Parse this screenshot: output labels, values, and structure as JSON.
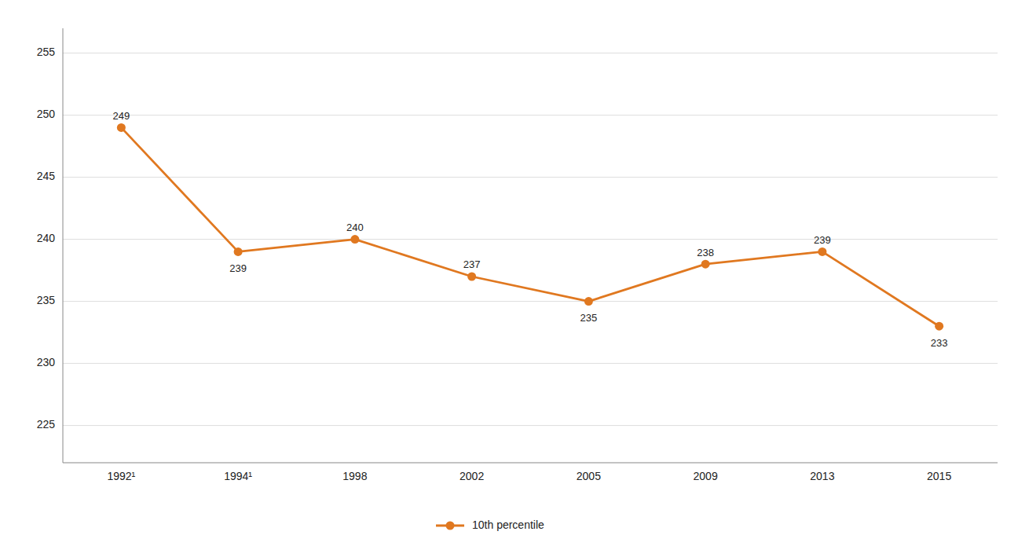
{
  "chart_data": {
    "type": "line",
    "categories": [
      "1992¹",
      "1994¹",
      "1998",
      "2002",
      "2005",
      "2009",
      "2013",
      "2015"
    ],
    "series": [
      {
        "name": "10th percentile",
        "color": "#E07820",
        "marker": "circle",
        "values": [
          249,
          239,
          240,
          237,
          235,
          238,
          239,
          233
        ]
      }
    ],
    "ylim": [
      222,
      257
    ],
    "yticks": [
      225,
      230,
      235,
      240,
      245,
      250,
      255
    ],
    "grid": true,
    "legend": "bottom",
    "data_labels": true
  }
}
